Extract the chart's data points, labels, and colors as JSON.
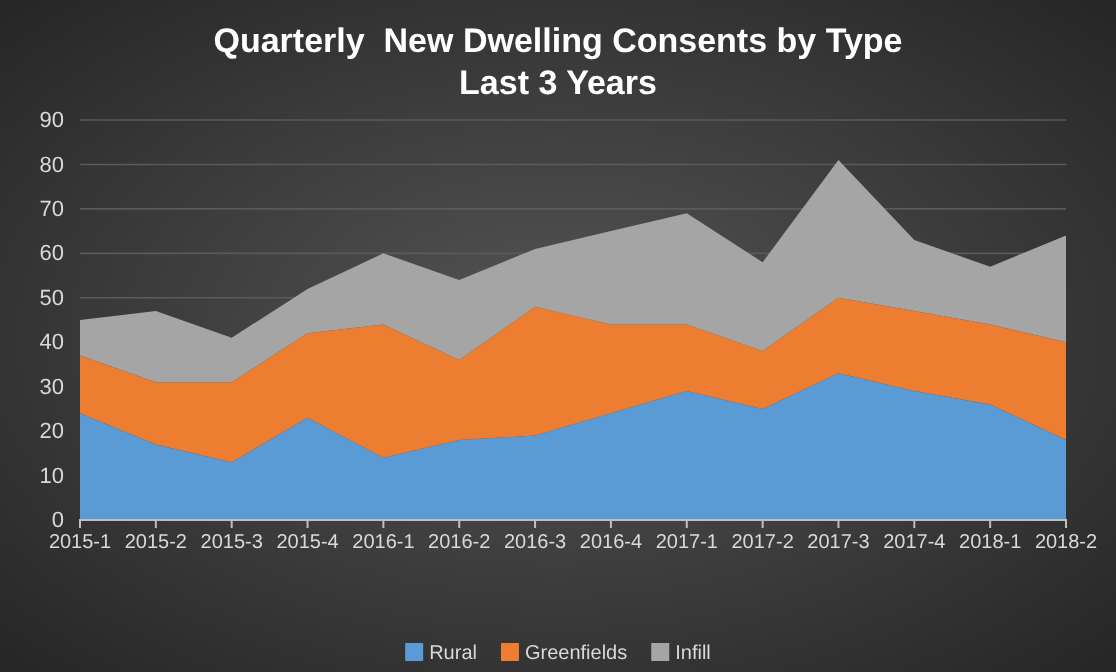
{
  "chart_data": {
    "type": "area",
    "title": "Quarterly  New Dwelling Consents by Type",
    "subtitle": "Last 3 Years",
    "stacked": true,
    "categories": [
      "2015-1",
      "2015-2",
      "2015-3",
      "2015-4",
      "2016-1",
      "2016-2",
      "2016-3",
      "2016-4",
      "2017-1",
      "2017-2",
      "2017-3",
      "2017-4",
      "2018-1",
      "2018-2"
    ],
    "series": [
      {
        "name": "Rural",
        "color": "#5b9bd5",
        "values": [
          24,
          17,
          13,
          23,
          14,
          18,
          19,
          24,
          29,
          25,
          33,
          29,
          26,
          18
        ]
      },
      {
        "name": "Greenfields",
        "color": "#ed7d31",
        "values": [
          13,
          14,
          18,
          19,
          30,
          18,
          29,
          20,
          15,
          13,
          17,
          18,
          18,
          22
        ]
      },
      {
        "name": "Infill",
        "color": "#a5a5a5",
        "values": [
          8,
          16,
          10,
          10,
          16,
          18,
          13,
          21,
          25,
          20,
          31,
          16,
          13,
          24
        ]
      }
    ],
    "ylim": [
      0,
      90
    ],
    "yticks": [
      0,
      10,
      20,
      30,
      40,
      50,
      60,
      70,
      80,
      90
    ],
    "grid": "y",
    "legend": "bottom"
  }
}
